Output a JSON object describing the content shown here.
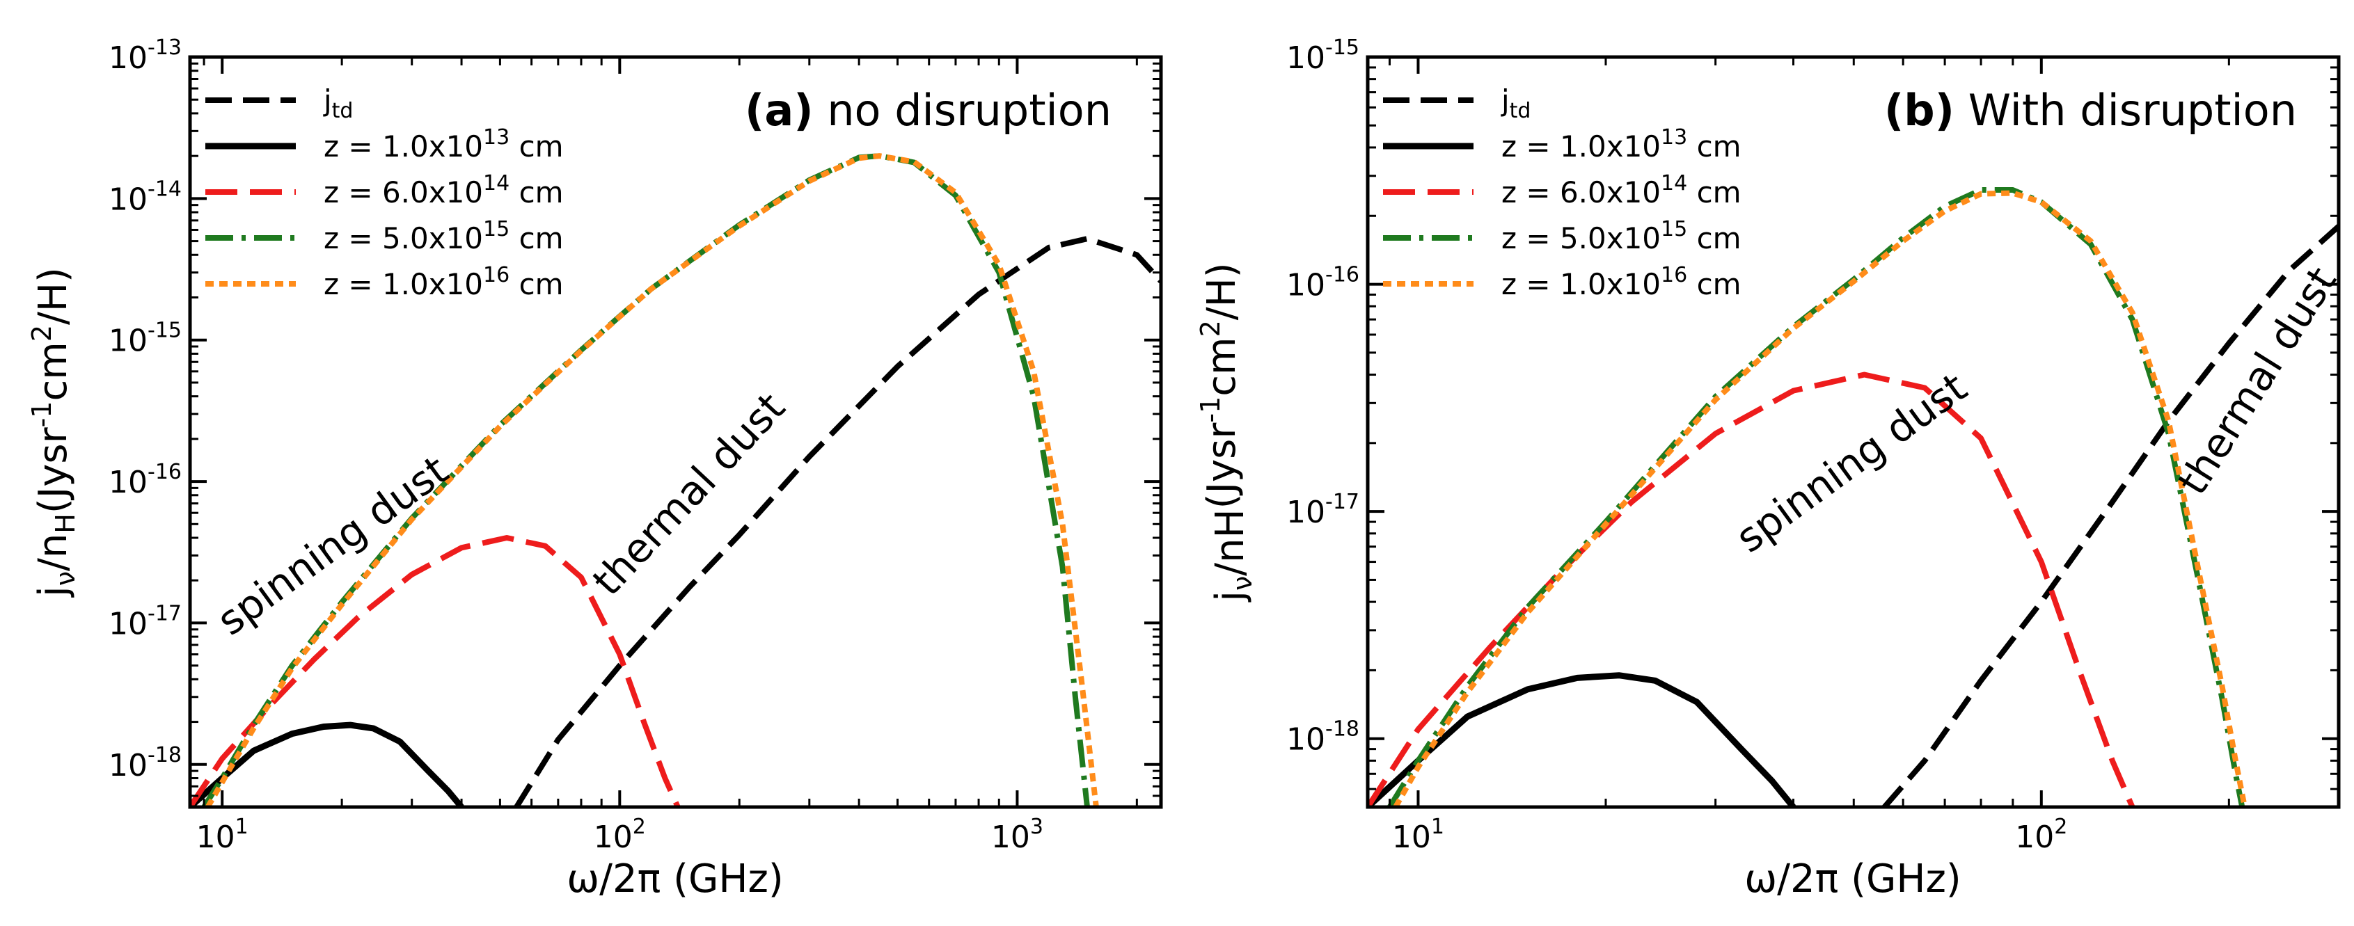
{
  "chart_data": [
    {
      "type": "line",
      "panel_tag": "(a)",
      "panel_title": "no disruption",
      "xlabel": "ω/2π (GHz)",
      "ylabel": {
        "base": "j",
        "sub1": "ν",
        "mid": "/n",
        "sub2": "H",
        "tail1": "(Jysr",
        "sup1": "-1",
        "tail2": "cm",
        "sup2": "2",
        "tail3": "/H)"
      },
      "xscale": "log",
      "yscale": "log",
      "xlim": [
        8.3,
        2300
      ],
      "ylim": [
        5e-19,
        1e-13
      ],
      "x_ticks": [
        {
          "value": 10,
          "base": "10",
          "exp": "1"
        },
        {
          "value": 100,
          "base": "10",
          "exp": "2"
        },
        {
          "value": 1000,
          "base": "10",
          "exp": "3"
        }
      ],
      "y_ticks": [
        {
          "value": 1e-18,
          "base": "10",
          "exp": "-18"
        },
        {
          "value": 1e-17,
          "base": "10",
          "exp": "-17"
        },
        {
          "value": 1e-16,
          "base": "10",
          "exp": "-16"
        },
        {
          "value": 1e-15,
          "base": "10",
          "exp": "-15"
        },
        {
          "value": 1e-14,
          "base": "10",
          "exp": "-14"
        },
        {
          "value": 1e-13,
          "base": "10",
          "exp": "-13"
        }
      ],
      "annotations": [
        {
          "text": "spinning dust",
          "x": 10.5,
          "y": 8e-18,
          "angle": -36
        },
        {
          "text": "thermal dust",
          "x": 95,
          "y": 1.5e-17,
          "angle": -47
        }
      ],
      "legend": {
        "placement": "top-left",
        "entries": [
          {
            "series_index": 0,
            "pre": "j",
            "sub": "td",
            "sup": "",
            "post": ""
          },
          {
            "series_index": 1,
            "pre": "z = 1.0x10",
            "sub": "",
            "sup": "13",
            "post": " cm"
          },
          {
            "series_index": 2,
            "pre": "z = 6.0x10",
            "sub": "",
            "sup": "14",
            "post": " cm"
          },
          {
            "series_index": 3,
            "pre": "z = 5.0x10",
            "sub": "",
            "sup": "15",
            "post": " cm"
          },
          {
            "series_index": 4,
            "pre": "z = 1.0x10",
            "sub": "",
            "sup": "16",
            "post": " cm"
          }
        ]
      },
      "series": [
        {
          "name": "j_td",
          "color": "#000000",
          "style": "dash",
          "x": [
            55,
            70,
            100,
            150,
            200,
            300,
            500,
            800,
            1200,
            1500,
            2000,
            2300
          ],
          "y": [
            5e-19,
            1.5e-18,
            5e-18,
            1.8e-17,
            4.2e-17,
            1.5e-16,
            6.5e-16,
            2.1e-15,
            4.5e-15,
            5.2e-15,
            4e-15,
            2.6e-15
          ]
        },
        {
          "name": "z = 1.0x10^13 cm",
          "color": "#000000",
          "style": "solid",
          "x": [
            8.3,
            10,
            12,
            15,
            18,
            21,
            24,
            28,
            33,
            37,
            40
          ],
          "y": [
            5e-19,
            8e-19,
            1.25e-18,
            1.65e-18,
            1.85e-18,
            1.9e-18,
            1.8e-18,
            1.45e-18,
            9e-19,
            6.5e-19,
            5e-19
          ]
        },
        {
          "name": "z = 6.0x10^14 cm",
          "color": "#ee1c1c",
          "style": "longdash",
          "x": [
            8.3,
            10,
            13,
            17,
            22,
            30,
            40,
            52,
            65,
            80,
            100,
            115,
            130,
            140
          ],
          "y": [
            5e-19,
            1.1e-18,
            2.5e-18,
            5.5e-18,
            1.1e-17,
            2.2e-17,
            3.4e-17,
            4e-17,
            3.5e-17,
            2.1e-17,
            6e-18,
            2e-18,
            8e-19,
            5e-19
          ]
        },
        {
          "name": "z = 5.0x10^15 cm",
          "color": "#1f7a1f",
          "style": "dashdot",
          "x": [
            9.0,
            10,
            12,
            15,
            20,
            30,
            50,
            80,
            120,
            200,
            300,
            400,
            450,
            550,
            700,
            900,
            1100,
            1300,
            1400,
            1500
          ],
          "y": [
            5e-19,
            8e-19,
            1.9e-18,
            5e-18,
            1.4e-17,
            5.5e-17,
            2.5e-16,
            8.5e-16,
            2.3e-15,
            6.5e-15,
            1.35e-14,
            1.95e-14,
            2e-14,
            1.8e-14,
            1.05e-14,
            3e-15,
            4e-16,
            2.5e-17,
            3e-18,
            5e-19
          ]
        },
        {
          "name": "z = 1.0x10^16 cm",
          "color": "#ff8c1a",
          "style": "dot",
          "x": [
            9.2,
            10,
            12,
            15,
            20,
            30,
            50,
            80,
            120,
            200,
            300,
            400,
            450,
            550,
            700,
            900,
            1100,
            1300,
            1450,
            1580
          ],
          "y": [
            5e-19,
            7.5e-19,
            1.8e-18,
            4.8e-18,
            1.35e-17,
            5.4e-17,
            2.45e-16,
            8.4e-16,
            2.3e-15,
            6.4e-15,
            1.33e-14,
            1.93e-14,
            2e-14,
            1.82e-14,
            1.1e-14,
            3.4e-15,
            6e-16,
            5e-17,
            4e-18,
            5e-19
          ]
        }
      ]
    },
    {
      "type": "line",
      "panel_tag": "(b)",
      "panel_title": "With disruption",
      "xlabel": "ω/2π (GHz)",
      "ylabel": {
        "base": "j",
        "sub1": "ν",
        "mid": "/nH",
        "sub2": "",
        "tail1": "(Jysr",
        "sup1": "-1",
        "tail2": "cm",
        "sup2": "2",
        "tail3": "/H)"
      },
      "xscale": "log",
      "yscale": "log",
      "xlim": [
        8.3,
        300
      ],
      "ylim": [
        5e-19,
        1e-15
      ],
      "x_ticks": [
        {
          "value": 10,
          "base": "10",
          "exp": "1"
        },
        {
          "value": 100,
          "base": "10",
          "exp": "2"
        }
      ],
      "y_ticks": [
        {
          "value": 1e-18,
          "base": "10",
          "exp": "-18"
        },
        {
          "value": 1e-17,
          "base": "10",
          "exp": "-17"
        },
        {
          "value": 1e-16,
          "base": "10",
          "exp": "-16"
        },
        {
          "value": 1e-15,
          "base": "10",
          "exp": "-15"
        }
      ],
      "annotations": [
        {
          "text": "spinning dust",
          "x": 34,
          "y": 6.5e-18,
          "angle": -36
        },
        {
          "text": "thermal dust",
          "x": 180,
          "y": 1.15e-17,
          "angle": -58
        }
      ],
      "legend": {
        "placement": "top-left",
        "entries": [
          {
            "series_index": 0,
            "pre": "j",
            "sub": "td",
            "sup": "",
            "post": ""
          },
          {
            "series_index": 1,
            "pre": "z = 1.0x10",
            "sub": "",
            "sup": "13",
            "post": " cm"
          },
          {
            "series_index": 2,
            "pre": "z = 6.0x10",
            "sub": "",
            "sup": "14",
            "post": " cm"
          },
          {
            "series_index": 3,
            "pre": "z = 5.0x10",
            "sub": "",
            "sup": "15",
            "post": " cm"
          },
          {
            "series_index": 4,
            "pre": "z = 1.0x10",
            "sub": "",
            "sup": "16",
            "post": " cm"
          }
        ]
      },
      "series": [
        {
          "name": "j_td",
          "color": "#000000",
          "style": "dash",
          "x": [
            56,
            65,
            80,
            100,
            130,
            160,
            200,
            250,
            300
          ],
          "y": [
            5e-19,
            8e-19,
            1.8e-18,
            4e-18,
            1.1e-17,
            2.5e-17,
            5.5e-17,
            1.15e-16,
            1.8e-16
          ]
        },
        {
          "name": "z = 1.0x10^13 cm",
          "color": "#000000",
          "style": "solid",
          "x": [
            8.3,
            10,
            12,
            15,
            18,
            21,
            24,
            28,
            33,
            37,
            40
          ],
          "y": [
            5e-19,
            8e-19,
            1.25e-18,
            1.65e-18,
            1.85e-18,
            1.9e-18,
            1.8e-18,
            1.45e-18,
            9e-19,
            6.5e-19,
            5e-19
          ]
        },
        {
          "name": "z = 6.0x10^14 cm",
          "color": "#ee1c1c",
          "style": "longdash",
          "x": [
            8.3,
            10,
            13,
            17,
            22,
            30,
            40,
            52,
            65,
            80,
            100,
            115,
            130,
            140
          ],
          "y": [
            5e-19,
            1.1e-18,
            2.5e-18,
            5.5e-18,
            1.1e-17,
            2.2e-17,
            3.4e-17,
            4e-17,
            3.5e-17,
            2.1e-17,
            6e-18,
            2e-18,
            8e-19,
            5e-19
          ]
        },
        {
          "name": "z = 5.0x10^15 cm",
          "color": "#1f7a1f",
          "style": "dashdot",
          "x": [
            9.0,
            10,
            12,
            15,
            20,
            30,
            40,
            50,
            60,
            70,
            80,
            90,
            100,
            120,
            140,
            160,
            180,
            195,
            205,
            210
          ],
          "y": [
            5e-19,
            8e-19,
            1.7e-18,
            3.8e-18,
            9e-18,
            3.2e-17,
            6.5e-17,
            1.05e-16,
            1.6e-16,
            2.2e-16,
            2.6e-16,
            2.6e-16,
            2.3e-16,
            1.5e-16,
            7e-17,
            2.2e-17,
            4.5e-18,
            1.5e-18,
            7e-19,
            5e-19
          ]
        },
        {
          "name": "z = 1.0x10^16 cm",
          "color": "#ff8c1a",
          "style": "dot",
          "x": [
            9.2,
            10,
            12,
            15,
            20,
            30,
            40,
            50,
            60,
            70,
            80,
            90,
            100,
            120,
            140,
            160,
            180,
            195,
            205,
            212
          ],
          "y": [
            5e-19,
            7.5e-19,
            1.6e-18,
            3.6e-18,
            8.8e-18,
            3.1e-17,
            6.4e-17,
            1.03e-16,
            1.55e-16,
            2.1e-16,
            2.5e-16,
            2.52e-16,
            2.3e-16,
            1.55e-16,
            7.5e-17,
            2.5e-17,
            5e-18,
            1.7e-18,
            8e-19,
            5e-19
          ]
        }
      ]
    }
  ]
}
